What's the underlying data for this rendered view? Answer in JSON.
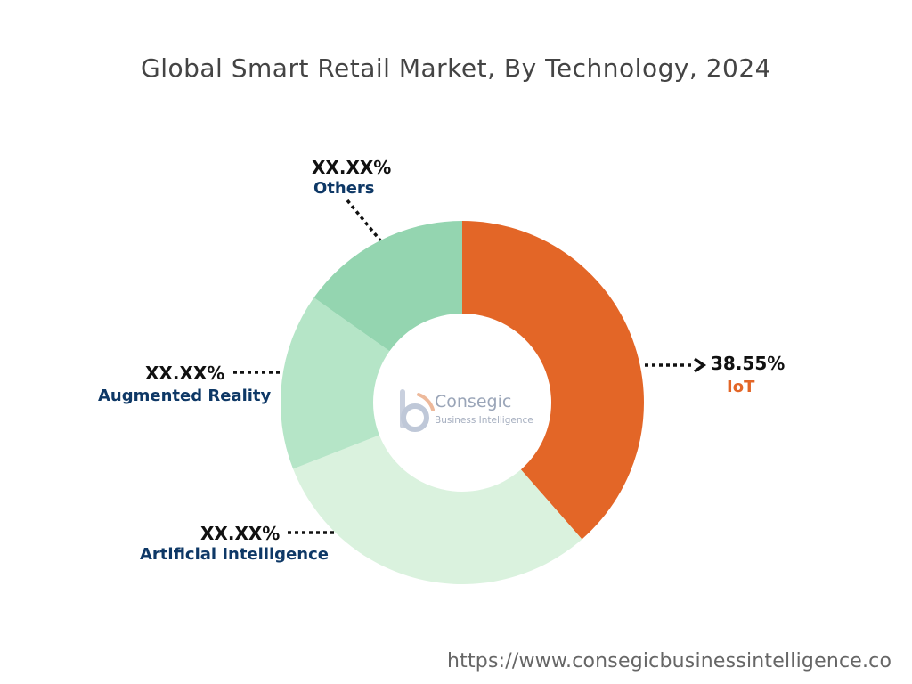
{
  "title": "Global Smart Retail Market, By Technology, 2024",
  "source_url": "https://www.consegicbusinessintelligence.co",
  "watermark": {
    "name": "Consegic",
    "subtitle": "Business Intelligence"
  },
  "chart_data": {
    "type": "pie",
    "variant": "donut",
    "title": "Global Smart Retail Market, By Technology, 2024",
    "unit": "%",
    "start_angle_deg": 0,
    "direction": "clockwise",
    "slices": [
      {
        "label": "IoT",
        "value": 38.55,
        "value_label": "38.55%",
        "color": "#E36627",
        "label_color": "#E36627"
      },
      {
        "label": "Artificial Intelligence",
        "value": 30.5,
        "value_label": "XX.XX%",
        "color": "#DAF2DE",
        "label_color": "#0E3866"
      },
      {
        "label": "Augmented Reality",
        "value": 15.75,
        "value_label": "XX.XX%",
        "color": "#B5E5C7",
        "label_color": "#0E3866"
      },
      {
        "label": "Others",
        "value": 15.2,
        "value_label": "XX.XX%",
        "color": "#94D5B0",
        "label_color": "#0E3866"
      }
    ]
  }
}
